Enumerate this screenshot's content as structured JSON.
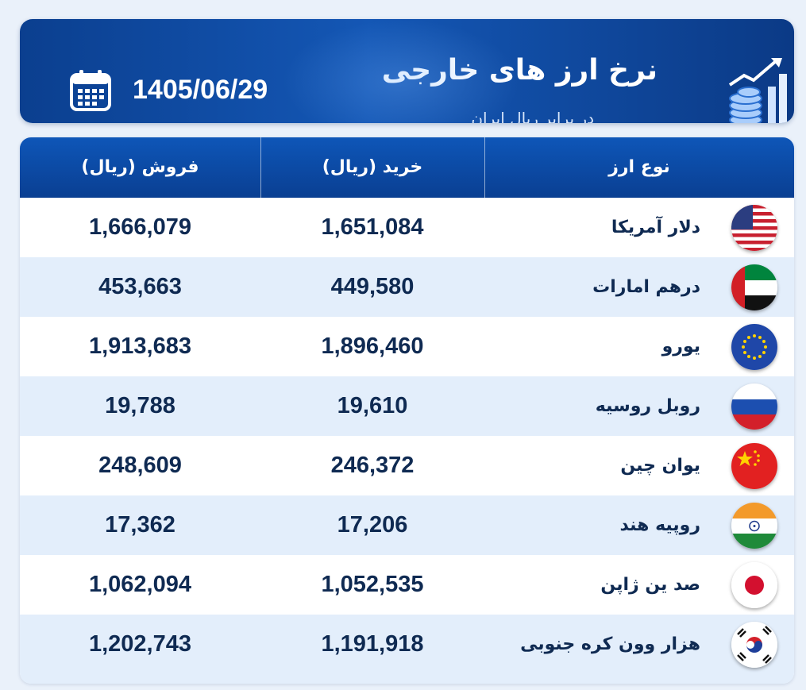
{
  "header": {
    "title": "نرخ ارز های خارجی",
    "subtitle": "در برابر ریال ایران",
    "date": "1405/06/29",
    "calendar_icon": "calendar-icon",
    "stats_icon": "coins-chart-icon"
  },
  "table": {
    "columns": {
      "type": "نوع ارز",
      "buy": "خرید (ریال)",
      "sell": "فروش (ریال)"
    },
    "rows": [
      {
        "name": "دلار آمریکا",
        "buy": "1,651,084",
        "sell": "1,666,079",
        "flag": "usa-flag-icon"
      },
      {
        "name": "درهم امارات",
        "buy": "449,580",
        "sell": "453,663",
        "flag": "uae-flag-icon"
      },
      {
        "name": "یورو",
        "buy": "1,896,460",
        "sell": "1,913,683",
        "flag": "eu-flag-icon"
      },
      {
        "name": "روبل روسیه",
        "buy": "19,610",
        "sell": "19,788",
        "flag": "russia-flag-icon"
      },
      {
        "name": "یوان چین",
        "buy": "246,372",
        "sell": "248,609",
        "flag": "china-flag-icon"
      },
      {
        "name": "روپیه هند",
        "buy": "17,206",
        "sell": "17,362",
        "flag": "india-flag-icon"
      },
      {
        "name": "صد ین ژاپن",
        "buy": "1,052,535",
        "sell": "1,062,094",
        "flag": "japan-flag-icon"
      },
      {
        "name": "هزار وون کره جنوبی",
        "buy": "1,191,918",
        "sell": "1,202,743",
        "flag": "south-korea-flag-icon"
      }
    ]
  },
  "colors": {
    "header_blue": "#0b3f8f",
    "text_dark": "#0f2a52",
    "row_alt": "#e3eefb"
  }
}
